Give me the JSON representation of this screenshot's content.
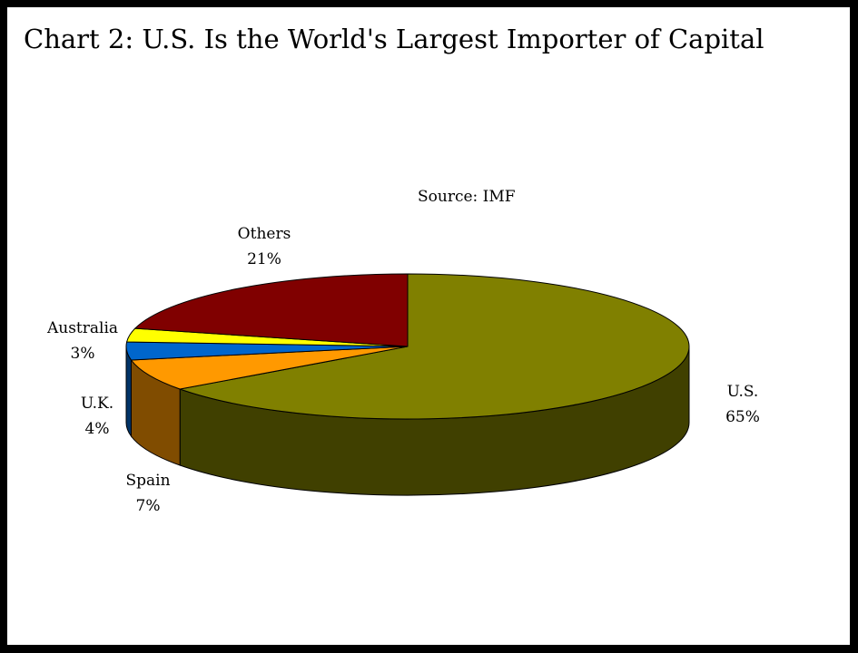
{
  "chart_data": {
    "type": "pie",
    "title": "Chart 2: U.S. Is the World's Largest Importer of Capital",
    "source": "Source: IMF",
    "style": "3d",
    "slices": [
      {
        "name": "U.S.",
        "value": 65,
        "label": "65%",
        "color": "#808000",
        "side_color": "#404000"
      },
      {
        "name": "Spain",
        "value": 7,
        "label": "7%",
        "color": "#FF9900",
        "side_color": "#804C00"
      },
      {
        "name": "U.K.",
        "value": 4,
        "label": "4%",
        "color": "#0066CC",
        "side_color": "#003366"
      },
      {
        "name": "Australia",
        "value": 3,
        "label": "3%",
        "color": "#FFFF00",
        "side_color": "#808000"
      },
      {
        "name": "Others",
        "value": 21,
        "label": "21%",
        "color": "#800000",
        "side_color": "#400000"
      }
    ]
  }
}
